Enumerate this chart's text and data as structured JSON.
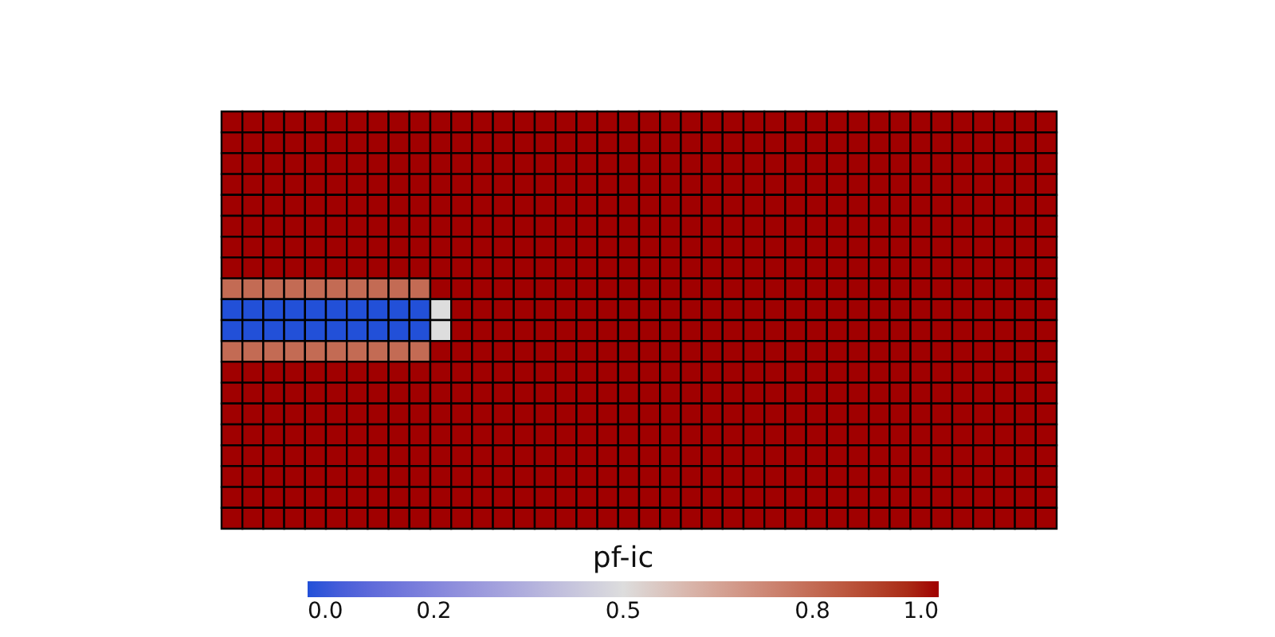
{
  "chart_data": {
    "type": "heatmap",
    "clabel": "pf-ic",
    "categories": [
      null,
      null,
      null,
      null,
      null,
      null,
      null,
      null,
      null,
      null,
      null,
      null,
      null,
      null,
      null,
      null,
      null,
      null,
      null,
      null,
      null,
      null,
      null,
      null,
      null,
      null,
      null,
      null,
      null,
      null,
      null,
      null,
      null,
      null,
      null,
      null,
      null,
      null,
      null,
      null
    ],
    "y_categories": [
      null,
      null,
      null,
      null,
      null,
      null,
      null,
      null,
      null,
      null,
      null,
      null,
      null,
      null,
      null,
      null,
      null,
      null,
      null,
      null
    ],
    "cells": [
      [
        1,
        1,
        1,
        1,
        1,
        1,
        1,
        1,
        1,
        1,
        1,
        1,
        1,
        1,
        1,
        1,
        1,
        1,
        1,
        1,
        1,
        1,
        1,
        1,
        1,
        1,
        1,
        1,
        1,
        1,
        1,
        1,
        1,
        1,
        1,
        1,
        1,
        1,
        1,
        1
      ],
      [
        1,
        1,
        1,
        1,
        1,
        1,
        1,
        1,
        1,
        1,
        1,
        1,
        1,
        1,
        1,
        1,
        1,
        1,
        1,
        1,
        1,
        1,
        1,
        1,
        1,
        1,
        1,
        1,
        1,
        1,
        1,
        1,
        1,
        1,
        1,
        1,
        1,
        1,
        1,
        1
      ],
      [
        1,
        1,
        1,
        1,
        1,
        1,
        1,
        1,
        1,
        1,
        1,
        1,
        1,
        1,
        1,
        1,
        1,
        1,
        1,
        1,
        1,
        1,
        1,
        1,
        1,
        1,
        1,
        1,
        1,
        1,
        1,
        1,
        1,
        1,
        1,
        1,
        1,
        1,
        1,
        1
      ],
      [
        1,
        1,
        1,
        1,
        1,
        1,
        1,
        1,
        1,
        1,
        1,
        1,
        1,
        1,
        1,
        1,
        1,
        1,
        1,
        1,
        1,
        1,
        1,
        1,
        1,
        1,
        1,
        1,
        1,
        1,
        1,
        1,
        1,
        1,
        1,
        1,
        1,
        1,
        1,
        1
      ],
      [
        1,
        1,
        1,
        1,
        1,
        1,
        1,
        1,
        1,
        1,
        1,
        1,
        1,
        1,
        1,
        1,
        1,
        1,
        1,
        1,
        1,
        1,
        1,
        1,
        1,
        1,
        1,
        1,
        1,
        1,
        1,
        1,
        1,
        1,
        1,
        1,
        1,
        1,
        1,
        1
      ],
      [
        1,
        1,
        1,
        1,
        1,
        1,
        1,
        1,
        1,
        1,
        1,
        1,
        1,
        1,
        1,
        1,
        1,
        1,
        1,
        1,
        1,
        1,
        1,
        1,
        1,
        1,
        1,
        1,
        1,
        1,
        1,
        1,
        1,
        1,
        1,
        1,
        1,
        1,
        1,
        1
      ],
      [
        1,
        1,
        1,
        1,
        1,
        1,
        1,
        1,
        1,
        1,
        1,
        1,
        1,
        1,
        1,
        1,
        1,
        1,
        1,
        1,
        1,
        1,
        1,
        1,
        1,
        1,
        1,
        1,
        1,
        1,
        1,
        1,
        1,
        1,
        1,
        1,
        1,
        1,
        1,
        1
      ],
      [
        1,
        1,
        1,
        1,
        1,
        1,
        1,
        1,
        1,
        1,
        1,
        1,
        1,
        1,
        1,
        1,
        1,
        1,
        1,
        1,
        1,
        1,
        1,
        1,
        1,
        1,
        1,
        1,
        1,
        1,
        1,
        1,
        1,
        1,
        1,
        1,
        1,
        1,
        1,
        1
      ],
      [
        0.8,
        0.8,
        0.8,
        0.8,
        0.8,
        0.8,
        0.8,
        0.8,
        0.8,
        0.8,
        1,
        1,
        1,
        1,
        1,
        1,
        1,
        1,
        1,
        1,
        1,
        1,
        1,
        1,
        1,
        1,
        1,
        1,
        1,
        1,
        1,
        1,
        1,
        1,
        1,
        1,
        1,
        1,
        1,
        1
      ],
      [
        0,
        0,
        0,
        0,
        0,
        0,
        0,
        0,
        0,
        0,
        0.5,
        1,
        1,
        1,
        1,
        1,
        1,
        1,
        1,
        1,
        1,
        1,
        1,
        1,
        1,
        1,
        1,
        1,
        1,
        1,
        1,
        1,
        1,
        1,
        1,
        1,
        1,
        1,
        1,
        1
      ],
      [
        0,
        0,
        0,
        0,
        0,
        0,
        0,
        0,
        0,
        0,
        0.5,
        1,
        1,
        1,
        1,
        1,
        1,
        1,
        1,
        1,
        1,
        1,
        1,
        1,
        1,
        1,
        1,
        1,
        1,
        1,
        1,
        1,
        1,
        1,
        1,
        1,
        1,
        1,
        1,
        1
      ],
      [
        0.8,
        0.8,
        0.8,
        0.8,
        0.8,
        0.8,
        0.8,
        0.8,
        0.8,
        0.8,
        1,
        1,
        1,
        1,
        1,
        1,
        1,
        1,
        1,
        1,
        1,
        1,
        1,
        1,
        1,
        1,
        1,
        1,
        1,
        1,
        1,
        1,
        1,
        1,
        1,
        1,
        1,
        1,
        1,
        1
      ],
      [
        1,
        1,
        1,
        1,
        1,
        1,
        1,
        1,
        1,
        1,
        1,
        1,
        1,
        1,
        1,
        1,
        1,
        1,
        1,
        1,
        1,
        1,
        1,
        1,
        1,
        1,
        1,
        1,
        1,
        1,
        1,
        1,
        1,
        1,
        1,
        1,
        1,
        1,
        1,
        1
      ],
      [
        1,
        1,
        1,
        1,
        1,
        1,
        1,
        1,
        1,
        1,
        1,
        1,
        1,
        1,
        1,
        1,
        1,
        1,
        1,
        1,
        1,
        1,
        1,
        1,
        1,
        1,
        1,
        1,
        1,
        1,
        1,
        1,
        1,
        1,
        1,
        1,
        1,
        1,
        1,
        1
      ],
      [
        1,
        1,
        1,
        1,
        1,
        1,
        1,
        1,
        1,
        1,
        1,
        1,
        1,
        1,
        1,
        1,
        1,
        1,
        1,
        1,
        1,
        1,
        1,
        1,
        1,
        1,
        1,
        1,
        1,
        1,
        1,
        1,
        1,
        1,
        1,
        1,
        1,
        1,
        1,
        1
      ],
      [
        1,
        1,
        1,
        1,
        1,
        1,
        1,
        1,
        1,
        1,
        1,
        1,
        1,
        1,
        1,
        1,
        1,
        1,
        1,
        1,
        1,
        1,
        1,
        1,
        1,
        1,
        1,
        1,
        1,
        1,
        1,
        1,
        1,
        1,
        1,
        1,
        1,
        1,
        1,
        1
      ],
      [
        1,
        1,
        1,
        1,
        1,
        1,
        1,
        1,
        1,
        1,
        1,
        1,
        1,
        1,
        1,
        1,
        1,
        1,
        1,
        1,
        1,
        1,
        1,
        1,
        1,
        1,
        1,
        1,
        1,
        1,
        1,
        1,
        1,
        1,
        1,
        1,
        1,
        1,
        1,
        1
      ],
      [
        1,
        1,
        1,
        1,
        1,
        1,
        1,
        1,
        1,
        1,
        1,
        1,
        1,
        1,
        1,
        1,
        1,
        1,
        1,
        1,
        1,
        1,
        1,
        1,
        1,
        1,
        1,
        1,
        1,
        1,
        1,
        1,
        1,
        1,
        1,
        1,
        1,
        1,
        1,
        1
      ],
      [
        1,
        1,
        1,
        1,
        1,
        1,
        1,
        1,
        1,
        1,
        1,
        1,
        1,
        1,
        1,
        1,
        1,
        1,
        1,
        1,
        1,
        1,
        1,
        1,
        1,
        1,
        1,
        1,
        1,
        1,
        1,
        1,
        1,
        1,
        1,
        1,
        1,
        1,
        1,
        1
      ],
      [
        1,
        1,
        1,
        1,
        1,
        1,
        1,
        1,
        1,
        1,
        1,
        1,
        1,
        1,
        1,
        1,
        1,
        1,
        1,
        1,
        1,
        1,
        1,
        1,
        1,
        1,
        1,
        1,
        1,
        1,
        1,
        1,
        1,
        1,
        1,
        1,
        1,
        1,
        1,
        1
      ]
    ],
    "clim": [
      0,
      1
    ],
    "cticks": [
      {
        "value": 0,
        "label": "0.0"
      },
      {
        "value": 0.2,
        "label": "0.2"
      },
      {
        "value": 0.5,
        "label": "0.5"
      },
      {
        "value": 0.8,
        "label": "0.8"
      },
      {
        "value": 1,
        "label": "1.0"
      }
    ],
    "colors": [
      "#2250d8",
      "#dddddd",
      "#a00000"
    ],
    "tick_labels": false
  }
}
